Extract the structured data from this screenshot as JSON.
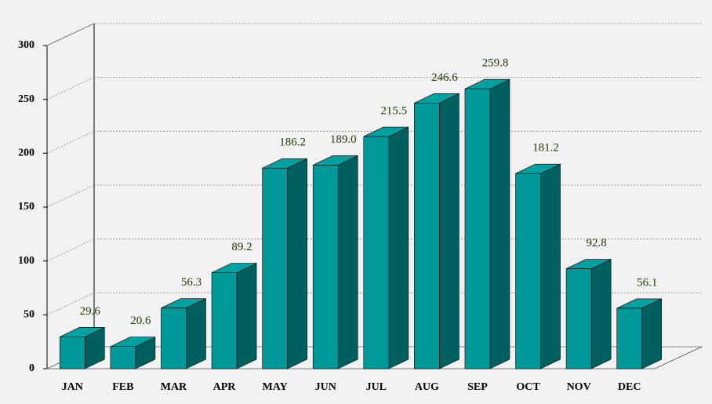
{
  "chart_data": {
    "type": "bar3d",
    "categories": [
      "JAN",
      "FEB",
      "MAR",
      "APR",
      "MAY",
      "JUN",
      "JUL",
      "AUG",
      "SEP",
      "OCT",
      "NOV",
      "DEC"
    ],
    "values": [
      29.6,
      20.6,
      56.3,
      89.2,
      186.2,
      189.0,
      215.5,
      246.6,
      259.8,
      181.2,
      92.8,
      56.1
    ],
    "value_labels": [
      "29.6",
      "20.6",
      "56.3",
      "89.2",
      "186.2",
      "189.0",
      "215.5",
      "246.6",
      "259.8",
      "181.2",
      "92.8",
      "56.1"
    ],
    "color": "#009999",
    "ylim": [
      0,
      300
    ],
    "yticks": [
      0,
      50,
      100,
      150,
      200,
      250,
      300
    ],
    "grid": true
  }
}
